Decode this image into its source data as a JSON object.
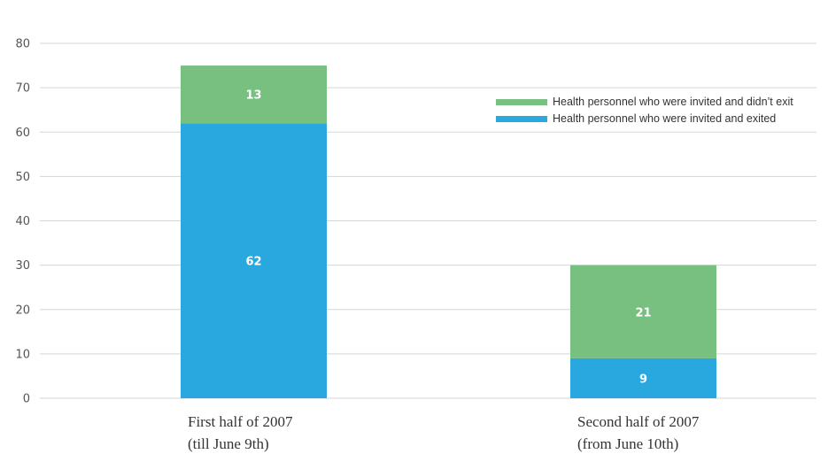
{
  "chart_data": {
    "type": "bar",
    "stacked": true,
    "categories": [
      [
        "First half of 2007",
        "(till June 9th)"
      ],
      [
        "Second half of 2007",
        "(from June 10th)"
      ]
    ],
    "series": [
      {
        "name": "Health personnel who were invited and exited",
        "values": [
          62,
          9
        ],
        "color": "#29a8e0"
      },
      {
        "name": "Health personnel who were invited and didn’t exit",
        "values": [
          13,
          21
        ],
        "color": "#77c07f"
      }
    ],
    "yticks": [
      0,
      10,
      20,
      30,
      40,
      50,
      60,
      70,
      80
    ],
    "ylim": [
      0,
      80
    ],
    "grid": true,
    "legend_position": "top-right",
    "gridColor": "#d5d5d5"
  }
}
